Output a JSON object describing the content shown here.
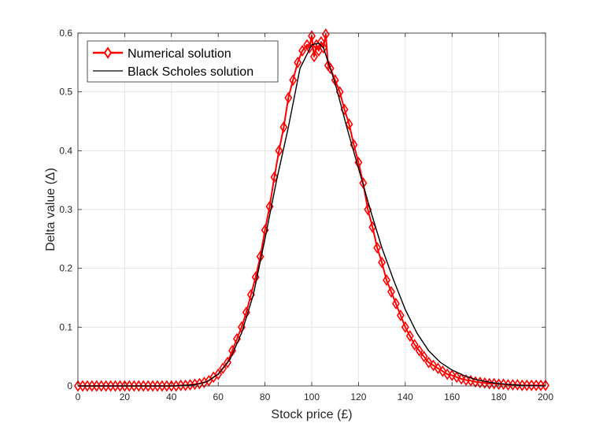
{
  "chart_data": {
    "type": "line",
    "title": "",
    "xlabel": "Stock price (£)",
    "ylabel": "Delta value (Δ)",
    "xlim": [
      0,
      200
    ],
    "ylim": [
      0,
      0.6
    ],
    "x_ticks": [
      0,
      20,
      40,
      60,
      80,
      100,
      120,
      140,
      160,
      180,
      200
    ],
    "y_ticks": [
      0,
      0.1,
      0.2,
      0.3,
      0.4,
      0.5,
      0.6
    ],
    "grid": true,
    "legend_position": "top-left",
    "series": [
      {
        "name": "Numerical solution",
        "color": "#ff0000",
        "marker": "diamond",
        "x": [
          0,
          2,
          4,
          6,
          8,
          10,
          12,
          14,
          16,
          18,
          20,
          22,
          24,
          26,
          28,
          30,
          32,
          34,
          36,
          38,
          40,
          42,
          44,
          46,
          48,
          50,
          52,
          54,
          56,
          58,
          60,
          62,
          64,
          66,
          68,
          70,
          72,
          74,
          76,
          78,
          80,
          82,
          84,
          86,
          88,
          90,
          92,
          94,
          96,
          98,
          99,
          100,
          101,
          102,
          103,
          104,
          105,
          106,
          107,
          108,
          110,
          112,
          114,
          116,
          118,
          120,
          122,
          124,
          126,
          128,
          130,
          132,
          134,
          136,
          138,
          140,
          142,
          144,
          146,
          148,
          150,
          152,
          154,
          156,
          158,
          160,
          162,
          164,
          166,
          168,
          170,
          172,
          174,
          176,
          178,
          180,
          182,
          184,
          186,
          188,
          190,
          192,
          194,
          196,
          198,
          200
        ],
        "y": [
          0,
          0,
          0,
          0,
          0,
          0,
          0,
          0,
          0,
          0,
          0,
          0,
          0,
          0,
          0,
          0,
          0,
          0,
          0,
          0,
          0,
          0,
          0.001,
          0.001,
          0.002,
          0.003,
          0.004,
          0.006,
          0.009,
          0.015,
          0.02,
          0.03,
          0.04,
          0.06,
          0.08,
          0.1,
          0.125,
          0.155,
          0.185,
          0.22,
          0.265,
          0.305,
          0.355,
          0.4,
          0.44,
          0.49,
          0.52,
          0.55,
          0.57,
          0.58,
          0.575,
          0.595,
          0.56,
          0.58,
          0.57,
          0.585,
          0.575,
          0.598,
          0.545,
          0.54,
          0.52,
          0.5,
          0.47,
          0.445,
          0.41,
          0.38,
          0.345,
          0.3,
          0.27,
          0.235,
          0.21,
          0.18,
          0.16,
          0.14,
          0.12,
          0.1,
          0.085,
          0.07,
          0.06,
          0.05,
          0.04,
          0.035,
          0.03,
          0.025,
          0.02,
          0.018,
          0.015,
          0.012,
          0.01,
          0.009,
          0.007,
          0.006,
          0.005,
          0.004,
          0.004,
          0.003,
          0.003,
          0.002,
          0.002,
          0.002,
          0.001,
          0.001,
          0.001,
          0.001,
          0.001,
          0.001
        ]
      },
      {
        "name": "Black Scholes solution",
        "color": "#000000",
        "x": [
          0,
          10,
          20,
          30,
          40,
          45,
          50,
          55,
          60,
          65,
          70,
          75,
          80,
          85,
          90,
          95,
          100,
          103,
          105,
          110,
          115,
          120,
          125,
          130,
          135,
          140,
          145,
          150,
          155,
          160,
          165,
          170,
          175,
          180,
          190,
          200
        ],
        "y": [
          0,
          0,
          0,
          0,
          0,
          0.001,
          0.002,
          0.007,
          0.02,
          0.045,
          0.09,
          0.155,
          0.25,
          0.35,
          0.44,
          0.54,
          0.58,
          0.583,
          0.575,
          0.515,
          0.44,
          0.37,
          0.3,
          0.235,
          0.18,
          0.13,
          0.09,
          0.06,
          0.04,
          0.027,
          0.018,
          0.011,
          0.007,
          0.004,
          0.001,
          0
        ]
      }
    ]
  }
}
